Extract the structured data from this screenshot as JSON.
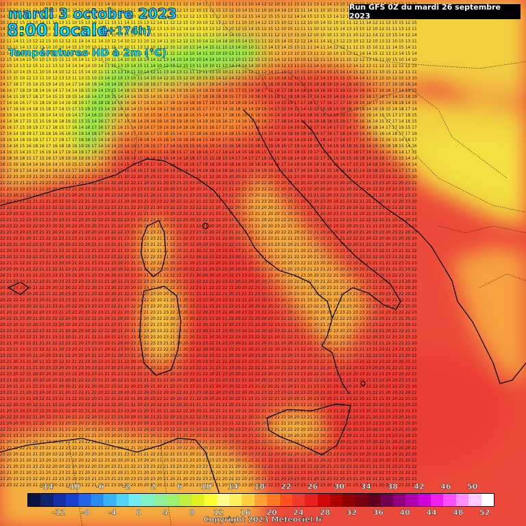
{
  "header": {
    "date": "mardi 3 octobre 2023",
    "time": "8:00 locale",
    "lead": "(+174h)",
    "variable": "Températures HD à 2m (°C)",
    "run": "Run GFS 0Z du mardi 26 septembre 2023"
  },
  "legend": {
    "colors": [
      "#0a1240",
      "#0f2470",
      "#1430a8",
      "#1a40d0",
      "#1f66e8",
      "#2a8cf0",
      "#38b4f5",
      "#50d4f8",
      "#70ecf5",
      "#80f2c8",
      "#8ff29a",
      "#a0f070",
      "#c0f040",
      "#e0f020",
      "#ffff30",
      "#ffff90",
      "#fff060",
      "#ffd040",
      "#ffa030",
      "#ff7a20",
      "#ff5020",
      "#f03a30",
      "#e82020",
      "#d00808",
      "#b00000",
      "#900000",
      "#780010",
      "#600020",
      "#700050",
      "#900080",
      "#b000b0",
      "#d000d8",
      "#f020f0",
      "#ff50ff",
      "#ff90ff",
      "#ffc8ff",
      "#ffffff"
    ],
    "top_ticks": [
      "-14",
      "-10",
      "-6",
      "-2",
      "2",
      "6",
      "10",
      "14",
      "18",
      "22",
      "26",
      "30",
      "34",
      "38",
      "42",
      "46",
      "50"
    ],
    "bottom_ticks": [
      "-12",
      "-8",
      "-4",
      "0",
      "4",
      "8",
      "12",
      "16",
      "20",
      "24",
      "28",
      "32",
      "36",
      "40",
      "44",
      "48",
      "52"
    ]
  },
  "footer": {
    "copyright": "Copyright 2023 Meteociel.fr"
  }
}
